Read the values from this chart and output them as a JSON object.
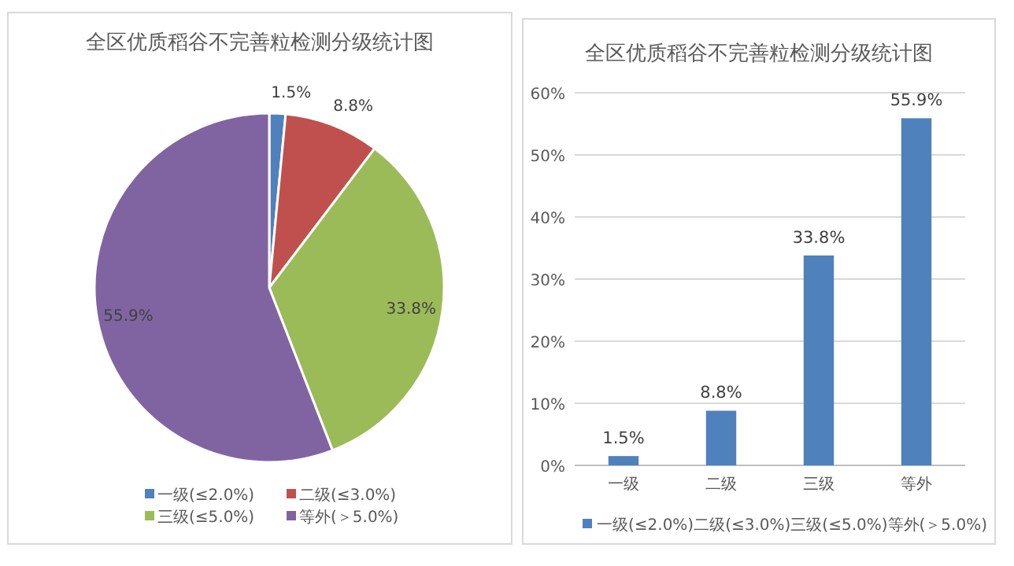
{
  "chart_data": [
    {
      "type": "pie",
      "title": "全区优质稻谷不完善粒检测分级统计图",
      "categories": [
        "一级(≤2.0%)",
        "二级(≤3.0%)",
        "三级(≤5.0%)",
        "等外(＞5.0%)"
      ],
      "values": [
        1.5,
        8.8,
        33.8,
        55.9
      ],
      "colors": [
        "#4f81bd",
        "#c0504d",
        "#9bbb59",
        "#8064a2"
      ],
      "value_labels": [
        "1.5%",
        "8.8%",
        "33.8%",
        "55.9%"
      ],
      "legend": "bottom"
    },
    {
      "type": "bar",
      "title": "全区优质稻谷不完善粒检测分级统计图",
      "categories": [
        "一级",
        "二级",
        "三级",
        "等外"
      ],
      "series": [
        {
          "name": "一级(≤2.0%)二级(≤3.0%)三级(≤5.0%)等外(＞5.0%)",
          "color": "#4f81bd",
          "values": [
            1.5,
            8.8,
            33.8,
            55.9
          ],
          "value_labels": [
            "1.5%",
            "8.8%",
            "33.8%",
            "55.9%"
          ]
        }
      ],
      "ylim": [
        0,
        60
      ],
      "yticks": [
        {
          "value": 0,
          "label": "0%"
        },
        {
          "value": 10,
          "label": "10%"
        },
        {
          "value": 20,
          "label": "20%"
        },
        {
          "value": 30,
          "label": "30%"
        },
        {
          "value": 40,
          "label": "40%"
        },
        {
          "value": 50,
          "label": "50%"
        },
        {
          "value": 60,
          "label": "60%"
        }
      ],
      "grid": "y",
      "legend": "bottom"
    }
  ]
}
